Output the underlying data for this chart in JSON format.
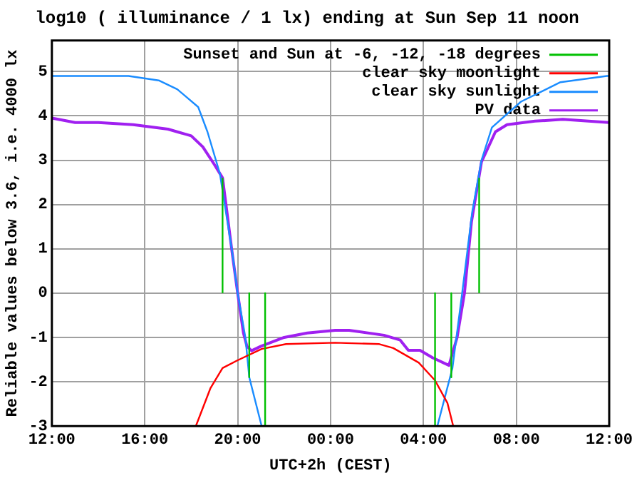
{
  "chart_data": {
    "type": "line",
    "title": "log10 ( illuminance / 1 lx) ending at Sun Sep 11 noon",
    "xlabel": "UTC+2h (CEST)",
    "ylabel": "Reliable values below 3.6, i.e. 4000 lx",
    "xlim": [
      "--09-10T12:00",
      "--09-11T12:00"
    ],
    "xticks": [
      {
        "value": "--09-10T12:00",
        "label": "12:00"
      },
      {
        "value": "--09-10T16:00",
        "label": "16:00"
      },
      {
        "value": "--09-10T20:00",
        "label": "20:00"
      },
      {
        "value": "--09-11T00:00",
        "label": "00:00"
      },
      {
        "value": "--09-11T04:00",
        "label": "04:00"
      },
      {
        "value": "--09-11T08:00",
        "label": "08:00"
      },
      {
        "value": "--09-11T12:00",
        "label": "12:00"
      }
    ],
    "ylim": [
      -3,
      5.7
    ],
    "yticks": [
      -3,
      -2,
      -1,
      0,
      1,
      2,
      3,
      4,
      5
    ],
    "grid": true,
    "legend": "top right",
    "marker": "none",
    "line_style": "solid",
    "series": [
      {
        "name": "Sunset and Sun at -6, -12, -18 degrees",
        "color": "#00c000",
        "x": [
          "--09-10T19:21",
          "--09-10T19:21"
        ],
        "values": [
          0,
          2.6
        ]
      },
      {
        "color": "#00c000",
        "x": [
          "--09-10T20:30",
          "--09-10T20:30"
        ],
        "values": [
          0,
          -1.9
        ]
      },
      {
        "color": "#00c000",
        "x": [
          "--09-10T21:11",
          "--09-10T21:11"
        ],
        "values": [
          0,
          -3
        ]
      },
      {
        "color": "#00c000",
        "x": [
          "--09-11T04:30",
          "--09-11T04:30"
        ],
        "values": [
          0,
          -3
        ]
      },
      {
        "color": "#00c000",
        "x": [
          "--09-11T05:12",
          "--09-11T05:12"
        ],
        "values": [
          0,
          -1.9
        ]
      },
      {
        "color": "#00c000",
        "x": [
          "--09-11T06:24",
          "--09-11T06:24"
        ],
        "values": [
          0,
          2.6
        ]
      },
      {
        "name": "clear sky moonlight",
        "color": "#ff0000",
        "x": [
          "--09-10T18:12",
          "--09-10T18:50",
          "--09-10T19:21",
          "--09-10T19:59",
          "--09-10T21:02",
          "--09-10T22:05",
          "--09-11T00:12",
          "--09-11T02:06",
          "--09-11T02:42",
          "--09-11T03:48",
          "--09-11T04:30",
          "--09-11T05:02",
          "--09-11T05:17"
        ],
        "values": [
          -3,
          -2.14,
          -1.69,
          -1.52,
          -1.26,
          -1.15,
          -1.12,
          -1.15,
          -1.24,
          -1.57,
          -1.97,
          -2.48,
          -3
        ]
      },
      {
        "name": "clear sky sunlight",
        "color": "#1a8cff",
        "x": [
          "--09-10T12:00",
          "--09-10T15:18",
          "--09-10T16:36",
          "--09-10T17:24",
          "--09-10T18:18",
          "--09-10T18:42",
          "--09-10T19:14",
          "--09-10T19:46",
          "--09-10T20:00",
          "--09-10T20:20",
          "--09-10T20:30",
          "--09-10T21:02",
          "--09-11T04:36",
          "--09-11T05:15",
          "--09-11T05:40",
          "--09-11T06:06",
          "--09-11T06:30",
          "--09-11T06:57",
          "--09-11T08:12",
          "--09-11T09:54",
          "--09-11T11:54",
          "--09-11T12:00"
        ],
        "values": [
          4.9,
          4.9,
          4.8,
          4.6,
          4.2,
          3.64,
          2.7,
          0.92,
          0,
          -1,
          -1.9,
          -3,
          -3,
          -1.69,
          0,
          1.83,
          3,
          3.74,
          4.32,
          4.76,
          4.9,
          4.9
        ]
      },
      {
        "name": "PV data",
        "color": "#a020f0",
        "x": [
          "--09-10T12:00",
          "--09-10T13:00",
          "--09-10T14:00",
          "--09-10T15:30",
          "--09-10T17:00",
          "--09-10T18:00",
          "--09-10T18:30",
          "--09-10T19:00",
          "--09-10T19:21",
          "--09-10T19:46",
          "--09-10T20:00",
          "--09-10T20:15",
          "--09-10T20:24",
          "--09-10T20:36",
          "--09-10T21:00",
          "--09-10T22:00",
          "--09-10T23:00",
          "--09-11T00:12",
          "--09-11T00:48",
          "--09-11T02:18",
          "--09-11T03:00",
          "--09-11T03:21",
          "--09-11T03:51",
          "--09-11T04:24",
          "--09-11T05:06",
          "--09-11T05:27",
          "--09-11T05:46",
          "--09-11T06:04",
          "--09-11T06:30",
          "--09-11T07:06",
          "--09-11T07:36",
          "--09-11T08:48",
          "--09-11T10:00",
          "--09-11T12:00"
        ],
        "values": [
          3.95,
          3.85,
          3.85,
          3.8,
          3.7,
          3.55,
          3.3,
          2.9,
          2.6,
          0.9,
          0,
          -0.9,
          -1.2,
          -1.3,
          -1.2,
          -1,
          -0.9,
          -0.84,
          -0.84,
          -0.95,
          -1.06,
          -1.29,
          -1.29,
          -1.46,
          -1.63,
          -1,
          0,
          1.6,
          2.96,
          3.64,
          3.8,
          3.88,
          3.92,
          3.85
        ]
      }
    ]
  }
}
